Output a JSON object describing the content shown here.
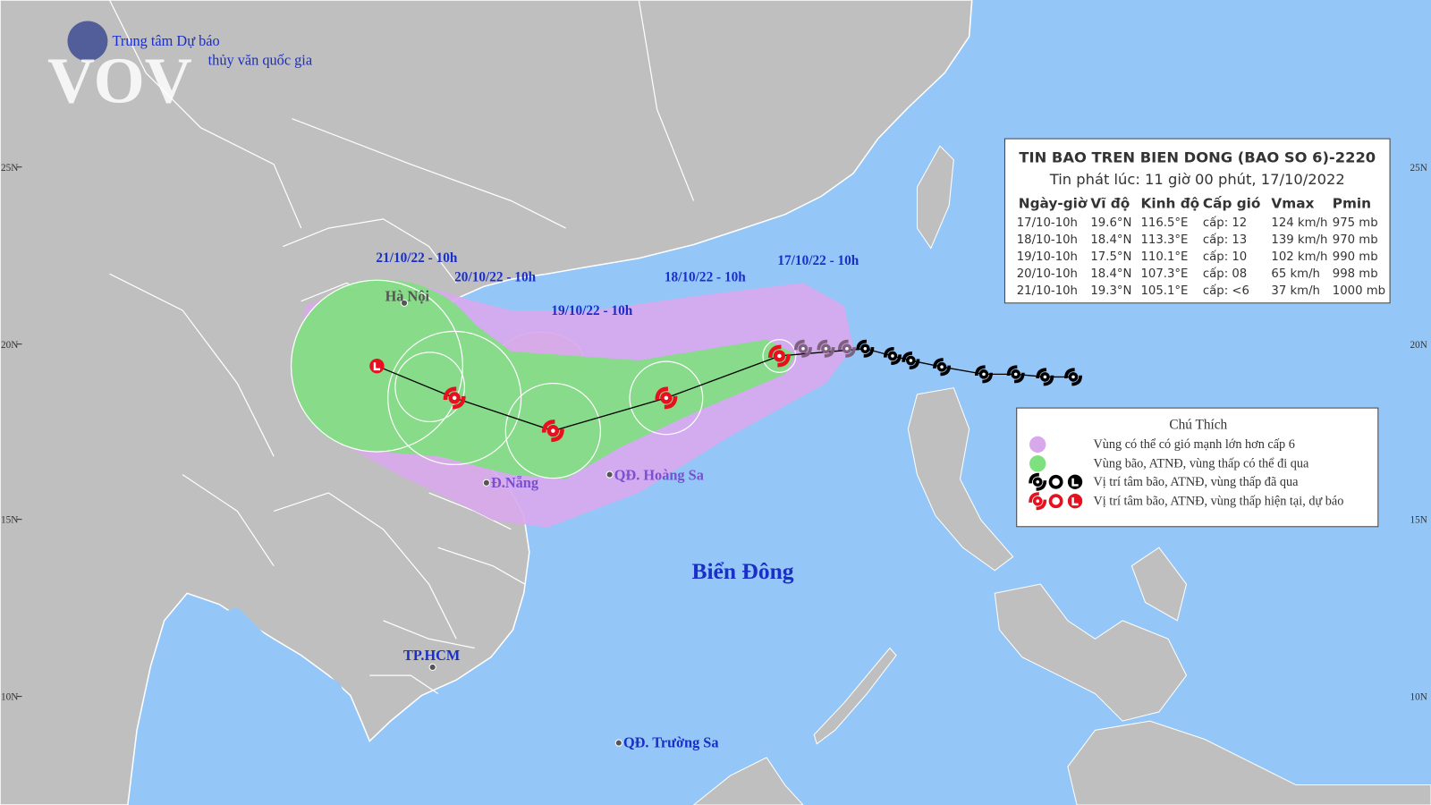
{
  "header": {
    "org_line1": "Trung tâm Dự báo",
    "org_line2": "thủy văn quốc gia",
    "watermark": "VOV"
  },
  "info_box": {
    "title": "TIN BAO TREN BIEN DONG (BAO SO 6)-2220",
    "issued": "Tin phát lúc: 11 giờ 00 phút, 17/10/2022",
    "columns": [
      "Ngày-giờ",
      "Vĩ độ",
      "Kinh độ",
      "Cấp gió",
      "Vmax",
      "Pmin"
    ],
    "rows": [
      [
        "17/10-10h",
        "19.6°N",
        "116.5°E",
        "cấp: 12",
        "124 km/h",
        "975 mb"
      ],
      [
        "18/10-10h",
        "18.4°N",
        "113.3°E",
        "cấp: 13",
        "139 km/h",
        "970 mb"
      ],
      [
        "19/10-10h",
        "17.5°N",
        "110.1°E",
        "cấp: 10",
        "102 km/h",
        "990 mb"
      ],
      [
        "20/10-10h",
        "18.4°N",
        "107.3°E",
        "cấp: 08",
        "65 km/h",
        "998 mb"
      ],
      [
        "21/10-10h",
        "19.3°N",
        "105.1°E",
        "cấp: <6",
        "37 km/h",
        "1000 mb"
      ]
    ]
  },
  "legend": {
    "title": "Chú Thích",
    "items": [
      "Vùng có thể có gió mạnh lớn hơn cấp 6",
      "Vùng bão, ATNĐ, vùng thấp có thể đi qua",
      "Vị trí tâm bão, ATNĐ, vùng thấp đã qua",
      "Vị trí tâm bão, ATNĐ, vùng thấp hiện tại, dự báo"
    ]
  },
  "track_labels": [
    "21/10/22 - 10h",
    "20/10/22 - 10h",
    "19/10/22 - 10h",
    "18/10/22 - 10h",
    "17/10/22 - 10h"
  ],
  "places": [
    "Hà Nội",
    "Đ.Nẵng",
    "QĐ. Hoàng Sa",
    "TP.HCM",
    "QĐ. Trường Sa"
  ],
  "sea_label": "Biển Đông",
  "latitude_labels": [
    "25N",
    "20N",
    "15N",
    "10N"
  ]
}
